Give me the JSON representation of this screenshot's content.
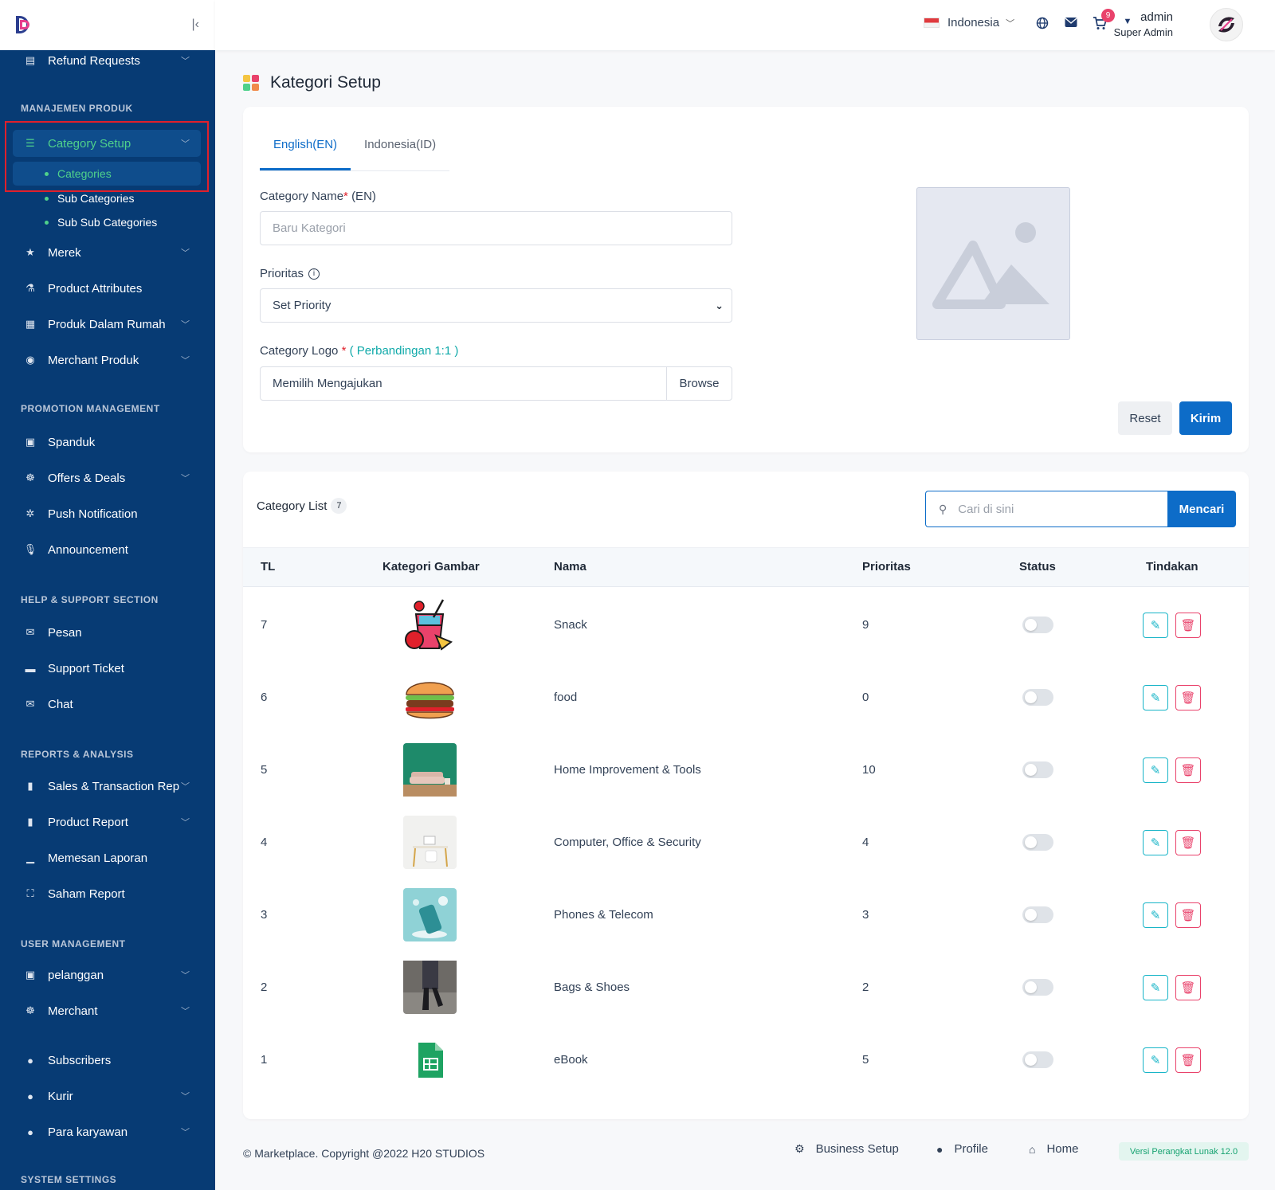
{
  "sidebar": {
    "top_item": "Refund Requests",
    "sections": {
      "produk": "MANAJEMEN PRODUK",
      "promotion": "PROMOTION MANAGEMENT",
      "help": "HELP & SUPPORT SECTION",
      "reports": "REPORTS & ANALYSIS",
      "users": "USER MANAGEMENT",
      "system": "SYSTEM SETTINGS"
    },
    "category_setup": "Category Setup",
    "sub_items": [
      "Categories",
      "Sub Categories",
      "Sub Sub Categories"
    ],
    "items": {
      "merek": "Merek",
      "product_attributes": "Product Attributes",
      "produk_dalam_rumah": "Produk Dalam Rumah",
      "merchant_produk": "Merchant Produk",
      "spanduk": "Spanduk",
      "offers_deals": "Offers & Deals",
      "push_notification": "Push Notification",
      "announcement": "Announcement",
      "pesan": "Pesan",
      "support_ticket": "Support Ticket",
      "chat": "Chat",
      "sales_report": "Sales & Transaction Rep",
      "product_report": "Product Report",
      "memesan_laporan": "Memesan Laporan",
      "saham_report": "Saham Report",
      "pelanggan": "pelanggan",
      "merchant": "Merchant",
      "subscribers": "Subscribers",
      "kurir": "Kurir",
      "para_karyawan": "Para karyawan"
    }
  },
  "header": {
    "language": "Indonesia",
    "cart_count": "9",
    "user_name": "admin",
    "user_role": "Super Admin"
  },
  "page": {
    "title": "Kategori Setup"
  },
  "form": {
    "tabs": [
      "English(EN)",
      "Indonesia(ID)"
    ],
    "name_label": "Category Name",
    "name_suffix": "(EN)",
    "name_placeholder": "Baru Kategori",
    "priority_label": "Prioritas",
    "priority_value": "Set Priority",
    "logo_label": "Category Logo",
    "logo_ratio": "( Perbandingan 1:1 )",
    "file_text": "Memilih Mengajukan",
    "browse_label": "Browse",
    "reset_label": "Reset",
    "submit_label": "Kirim"
  },
  "list": {
    "title": "Category List",
    "count": "7",
    "search_placeholder": "Cari di sini",
    "search_button": "Mencari",
    "columns": [
      "TL",
      "Kategori Gambar",
      "Nama",
      "Prioritas",
      "Status",
      "Tindakan"
    ],
    "rows": [
      {
        "id": "7",
        "name": "Snack",
        "priority": "9",
        "image": "snack-drink-icon"
      },
      {
        "id": "6",
        "name": "food",
        "priority": "0",
        "image": "burger-icon"
      },
      {
        "id": "5",
        "name": "Home Improvement & Tools",
        "priority": "10",
        "image": "sofa-photo"
      },
      {
        "id": "4",
        "name": "Computer, Office & Security",
        "priority": "4",
        "image": "desk-photo"
      },
      {
        "id": "3",
        "name": "Phones & Telecom",
        "priority": "3",
        "image": "phone-photo"
      },
      {
        "id": "2",
        "name": "Bags & Shoes",
        "priority": "2",
        "image": "shoes-photo"
      },
      {
        "id": "1",
        "name": "eBook",
        "priority": "5",
        "image": "spreadsheet-icon"
      }
    ]
  },
  "footer": {
    "copyright": "© Marketplace. Copyright @2022 H20 STUDIOS",
    "business_setup": "Business Setup",
    "profile": "Profile",
    "home": "Home",
    "version": "Versi Perangkat Lunak 12.0"
  },
  "colors": {
    "sidebar_bg": "#073b74",
    "primary": "#0d6cc8",
    "active_green": "#4fd18b",
    "edit": "#18b5c8",
    "delete": "#e9426b"
  }
}
